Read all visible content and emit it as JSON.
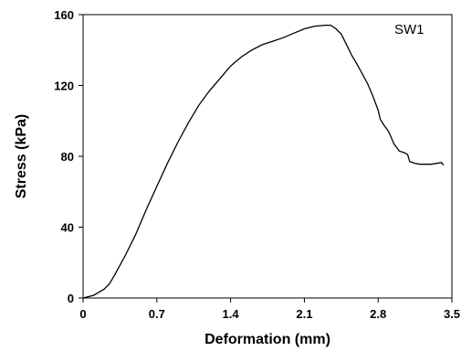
{
  "chart_data": {
    "type": "line",
    "title": "",
    "annotation": "SW1",
    "xlabel": "Deformation (mm)",
    "ylabel": "Stress (kPa)",
    "xlim": [
      0,
      3.5
    ],
    "ylim": [
      0,
      160
    ],
    "xticks": [
      0,
      0.7,
      1.4,
      2.1,
      2.8,
      3.5
    ],
    "xtick_labels": [
      "0",
      "0.7",
      "1.4",
      "2.1",
      "2.8",
      "3.5"
    ],
    "yticks": [
      0,
      40,
      80,
      120,
      160
    ],
    "ytick_labels": [
      "0",
      "40",
      "80",
      "120",
      "160"
    ],
    "grid": false,
    "legend": "none",
    "line_color": "#000000",
    "series": [
      {
        "x": [
          0,
          0.1,
          0.2,
          0.25,
          0.3,
          0.4,
          0.5,
          0.6,
          0.7,
          0.8,
          0.9,
          1.0,
          1.1,
          1.2,
          1.3,
          1.4,
          1.5,
          1.6,
          1.7,
          1.8,
          1.9,
          2.0,
          2.1,
          2.2,
          2.3,
          2.35,
          2.4,
          2.45,
          2.5,
          2.55,
          2.6,
          2.7,
          2.75,
          2.8,
          2.82,
          2.85,
          2.9,
          2.95,
          3.0,
          3.05,
          3.08,
          3.1,
          3.15,
          3.2,
          3.3,
          3.35,
          3.4,
          3.42
        ],
        "y": [
          0,
          1.5,
          5,
          8,
          13,
          24,
          36,
          50,
          63,
          76,
          88,
          99,
          109,
          117,
          124,
          131,
          136,
          140,
          143,
          145,
          147,
          149.5,
          152,
          153.5,
          154,
          154,
          152,
          149,
          143,
          137,
          132,
          121,
          114,
          106,
          101,
          98,
          94,
          87,
          83,
          82,
          81,
          77,
          76,
          75.5,
          75.5,
          76,
          76.5,
          75
        ]
      }
    ]
  }
}
